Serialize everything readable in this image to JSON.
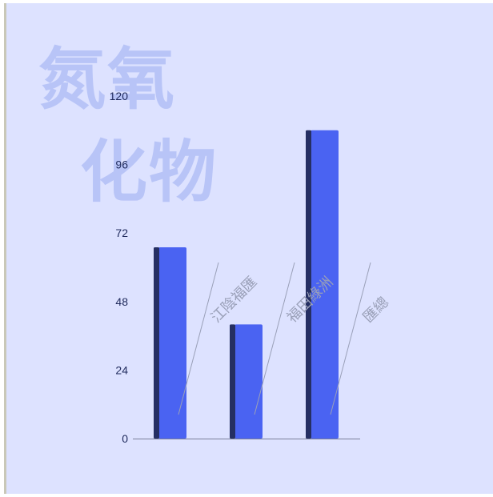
{
  "watermark": {
    "line1": "氮氧",
    "line2": "化物"
  },
  "colors": {
    "background": "#dde2ff",
    "bar_front": "#4a63f2",
    "bar_side": "#252f63",
    "axis": "#7a7f99",
    "tick_text": "#1f2a5c",
    "label_text": "#9aa0b8",
    "watermark": "#b8c4f7"
  },
  "chart_data": {
    "type": "bar",
    "categories": [
      "江陰福匯",
      "福田綠洲",
      "匯總"
    ],
    "values": [
      67,
      40,
      108
    ],
    "ylim": [
      0,
      120
    ],
    "yticks": [
      0,
      24,
      48,
      72,
      96,
      120
    ],
    "title": "",
    "xlabel": "",
    "ylabel": "",
    "grid": false,
    "legend": "none"
  }
}
